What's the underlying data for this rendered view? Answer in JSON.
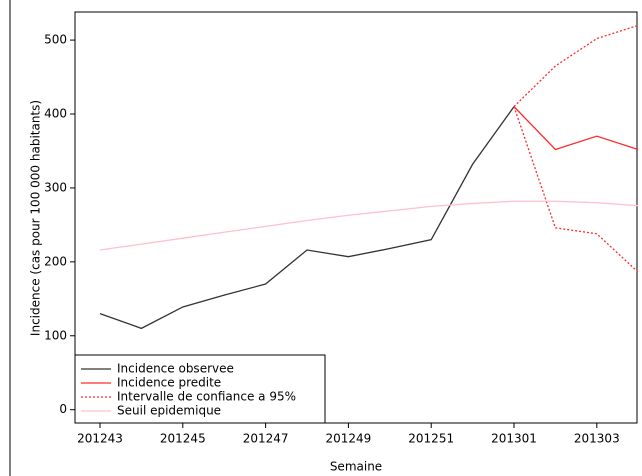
{
  "chart_data": {
    "type": "line",
    "x_label": "Semaine",
    "y_label": "Incidence (cas pour 100 000 habitants)",
    "categories": [
      "201243",
      null,
      "201245",
      null,
      "201247",
      null,
      "201249",
      null,
      "201251",
      null,
      "201301",
      null,
      "201303",
      null
    ],
    "series": [
      {
        "name": "Incidence observee",
        "color": "#333333",
        "values": [
          130,
          110,
          139,
          155,
          170,
          216,
          207,
          218,
          230,
          332,
          410,
          null,
          null,
          null
        ]
      },
      {
        "name": "Incidence predite",
        "color": "#ff2a2a",
        "values": [
          null,
          null,
          null,
          null,
          null,
          null,
          null,
          null,
          null,
          null,
          410,
          352,
          370,
          352
        ]
      },
      {
        "name": "Intervalle de confiance a 95%",
        "color": "#ff2a2a",
        "dashed": true,
        "values": [
          null,
          null,
          null,
          null,
          null,
          null,
          null,
          null,
          null,
          null,
          410,
          465,
          502,
          520
        ],
        "lower": [
          null,
          null,
          null,
          null,
          null,
          null,
          null,
          null,
          null,
          null,
          410,
          246,
          238,
          186
        ]
      },
      {
        "name": "Seuil epidemique",
        "color": "#ffc0cb",
        "values": [
          216,
          224,
          232,
          240,
          248,
          256,
          263,
          269,
          275,
          279,
          282,
          282,
          280,
          276
        ]
      }
    ],
    "ylim": [
      -18,
      538
    ],
    "yticks": [
      0,
      100,
      200,
      300,
      400,
      500
    ],
    "legend": "lower left"
  }
}
